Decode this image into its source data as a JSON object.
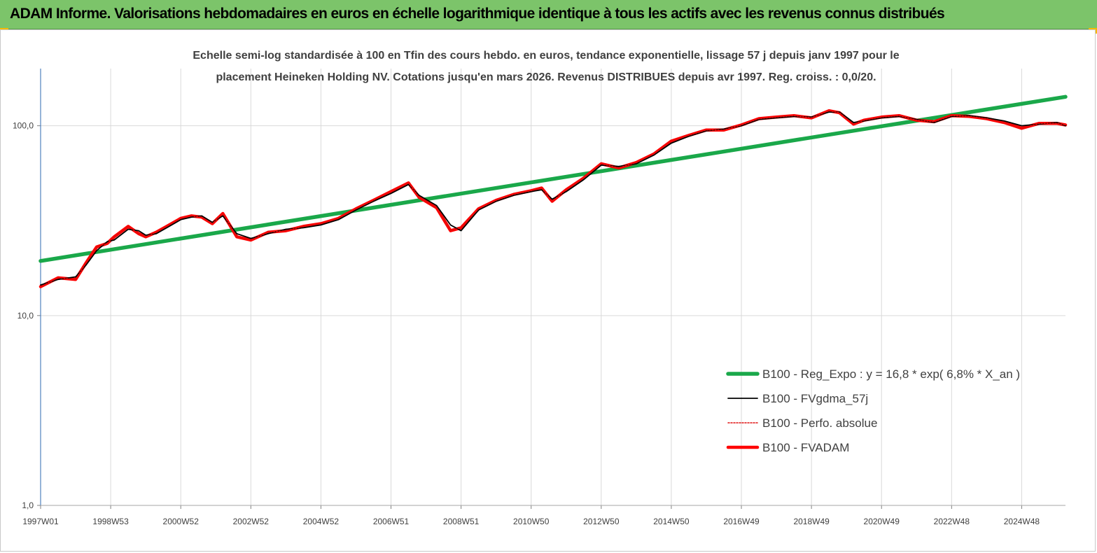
{
  "header": {
    "title": "ADAM Informe. Valorisations hebdomadaires en euros en échelle logarithmique identique à tous les actifs avec les revenus connus distribués"
  },
  "chart_data": {
    "type": "line",
    "title_line1": "Echelle semi-log standardisée à 100 en Tfin des cours hebdo. en euros, tendance exponentielle, lissage 57 j depuis janv 1997 pour le",
    "title_line2": "placement Heineken Holding NV. Cotations jusqu'en mars 2026. Revenus DISTRIBUES depuis avr 1997. Reg. croiss. : 0,0/20.",
    "y_scale": "log",
    "ylim": [
      1,
      200
    ],
    "xlim": [
      1997.0,
      2026.25
    ],
    "y_tick_labels": [
      "1,0",
      "10,0",
      "100,0"
    ],
    "y_tick_values": [
      1,
      10,
      100
    ],
    "x_tick_labels": [
      "1997W01",
      "1998W53",
      "2000W52",
      "2002W52",
      "2004W52",
      "2006W51",
      "2008W51",
      "2010W50",
      "2012W50",
      "2014W50",
      "2016W49",
      "2018W49",
      "2020W49",
      "2022W48",
      "2024W48"
    ],
    "x_tick_values": [
      1997.0,
      1999.0,
      2001.0,
      2003.0,
      2005.0,
      2007.0,
      2009.0,
      2011.0,
      2013.0,
      2015.0,
      2017.0,
      2019.0,
      2021.0,
      2023.0,
      2025.0
    ],
    "grid": "vertical",
    "legend_position": "bottom-right",
    "series": [
      {
        "name": "B100 - Reg_Expo : y = 16,8 *  exp( 6,8% *  X_an )",
        "color": "#1aa84a",
        "style": "thick",
        "x": [
          1997.0,
          2026.25
        ],
        "y": [
          19.4,
          142.0
        ]
      },
      {
        "name": "B100 - FVgdma_57j",
        "color": "#000000",
        "style": "thin",
        "x": [
          1997.0,
          1997.5,
          1998.0,
          1998.3,
          1998.6,
          1998.9,
          1999.1,
          1999.5,
          1999.8,
          2000.0,
          2000.3,
          2000.6,
          2001.0,
          2001.3,
          2001.6,
          2001.9,
          2002.2,
          2002.6,
          2003.0,
          2003.5,
          2004.0,
          2004.5,
          2005.0,
          2005.5,
          2006.0,
          2006.5,
          2007.0,
          2007.5,
          2007.8,
          2008.3,
          2008.7,
          2009.0,
          2009.5,
          2010.0,
          2010.5,
          2011.0,
          2011.3,
          2011.6,
          2012.0,
          2012.5,
          2013.0,
          2013.5,
          2014.0,
          2014.5,
          2015.0,
          2015.5,
          2016.0,
          2016.5,
          2017.0,
          2017.5,
          2018.0,
          2018.5,
          2019.0,
          2019.5,
          2019.8,
          2020.2,
          2020.5,
          2021.0,
          2021.5,
          2022.0,
          2022.5,
          2023.0,
          2023.5,
          2024.0,
          2024.5,
          2025.0,
          2025.5,
          2026.0,
          2026.25
        ],
        "y": [
          14.5,
          15.5,
          16.0,
          18.5,
          22.0,
          24.5,
          25.0,
          28.5,
          28.0,
          26.5,
          27.0,
          29.0,
          32.0,
          33.0,
          33.5,
          31.0,
          33.5,
          27.0,
          25.5,
          27.0,
          28.5,
          29.0,
          30.0,
          32.0,
          36.0,
          40.0,
          44.0,
          49.0,
          43.0,
          38.0,
          30.0,
          28.0,
          36.0,
          40.0,
          43.0,
          45.0,
          46.0,
          41.0,
          45.0,
          52.0,
          62.0,
          61.0,
          63.0,
          70.0,
          81.0,
          88.0,
          94.0,
          96.0,
          100.0,
          108.0,
          110.0,
          112.0,
          111.0,
          118.0,
          118.0,
          104.0,
          106.0,
          110.0,
          112.0,
          108.0,
          104.0,
          112.0,
          113.0,
          110.0,
          106.0,
          100.0,
          102.0,
          104.0,
          100.0
        ]
      },
      {
        "name": "B100 - Perfo. absolue",
        "color": "#e01010",
        "style": "dotted",
        "x": [
          1997.0,
          1997.5,
          1998.0,
          1998.3,
          1998.6,
          1998.9,
          1999.1,
          1999.5,
          1999.8,
          2000.0,
          2000.3,
          2000.6,
          2001.0,
          2001.3,
          2001.6,
          2001.9,
          2002.2,
          2002.6,
          2003.0,
          2003.5,
          2004.0,
          2004.5,
          2005.0,
          2005.5,
          2006.0,
          2006.5,
          2007.0,
          2007.5,
          2007.8,
          2008.3,
          2008.7,
          2009.0,
          2009.5,
          2010.0,
          2010.5,
          2011.0,
          2011.3,
          2011.6,
          2012.0,
          2012.5,
          2013.0,
          2013.5,
          2014.0,
          2014.5,
          2015.0,
          2015.5,
          2016.0,
          2016.5,
          2017.0,
          2017.5,
          2018.0,
          2018.5,
          2019.0,
          2019.5,
          2019.8,
          2020.2,
          2020.5,
          2021.0,
          2021.5,
          2022.0,
          2022.5,
          2023.0,
          2023.5,
          2024.0,
          2024.5,
          2025.0,
          2025.5,
          2026.0,
          2026.25
        ],
        "y": [
          14.2,
          15.8,
          15.5,
          19.0,
          23.0,
          24.0,
          26.0,
          29.5,
          27.0,
          26.0,
          27.5,
          29.5,
          32.5,
          33.5,
          33.0,
          30.5,
          34.5,
          26.0,
          25.0,
          27.5,
          28.0,
          29.5,
          30.5,
          32.5,
          36.5,
          40.5,
          45.0,
          50.0,
          42.0,
          37.0,
          28.0,
          29.0,
          36.5,
          40.5,
          43.5,
          45.5,
          47.0,
          40.0,
          46.0,
          53.0,
          63.0,
          60.0,
          64.0,
          71.0,
          83.0,
          89.0,
          95.0,
          95.0,
          101.0,
          109.0,
          111.0,
          113.0,
          110.0,
          120.0,
          117.0,
          102.0,
          107.0,
          111.0,
          113.0,
          107.0,
          105.0,
          113.0,
          112.0,
          109.0,
          104.0,
          97.0,
          103.0,
          103.0,
          101.0
        ]
      },
      {
        "name": "B100 - FVADAM",
        "color": "#ff0000",
        "style": "thick",
        "x": [
          1997.0,
          1997.5,
          1998.0,
          1998.3,
          1998.6,
          1998.9,
          1999.1,
          1999.5,
          1999.8,
          2000.0,
          2000.3,
          2000.6,
          2001.0,
          2001.3,
          2001.6,
          2001.9,
          2002.2,
          2002.6,
          2003.0,
          2003.5,
          2004.0,
          2004.5,
          2005.0,
          2005.5,
          2006.0,
          2006.5,
          2007.0,
          2007.5,
          2007.8,
          2008.3,
          2008.7,
          2009.0,
          2009.5,
          2010.0,
          2010.5,
          2011.0,
          2011.3,
          2011.6,
          2012.0,
          2012.5,
          2013.0,
          2013.5,
          2014.0,
          2014.5,
          2015.0,
          2015.5,
          2016.0,
          2016.5,
          2017.0,
          2017.5,
          2018.0,
          2018.5,
          2019.0,
          2019.5,
          2019.8,
          2020.2,
          2020.5,
          2021.0,
          2021.5,
          2022.0,
          2022.5,
          2023.0,
          2023.5,
          2024.0,
          2024.5,
          2025.0,
          2025.5,
          2026.0,
          2026.25
        ],
        "y": [
          14.2,
          15.8,
          15.5,
          19.0,
          23.0,
          24.0,
          26.0,
          29.5,
          27.0,
          26.0,
          27.5,
          29.5,
          32.5,
          33.5,
          33.0,
          30.5,
          34.5,
          26.0,
          25.0,
          27.5,
          28.0,
          29.5,
          30.5,
          32.5,
          36.5,
          40.5,
          45.0,
          50.0,
          42.0,
          37.0,
          28.0,
          29.0,
          36.5,
          40.5,
          43.5,
          45.5,
          47.0,
          40.0,
          46.0,
          53.0,
          63.0,
          60.0,
          64.0,
          71.0,
          83.0,
          89.0,
          95.0,
          95.0,
          101.0,
          109.0,
          111.0,
          113.0,
          110.0,
          120.0,
          117.0,
          102.0,
          107.0,
          111.0,
          113.0,
          107.0,
          105.0,
          113.0,
          112.0,
          109.0,
          104.0,
          97.0,
          103.0,
          103.0,
          101.0
        ]
      }
    ]
  }
}
